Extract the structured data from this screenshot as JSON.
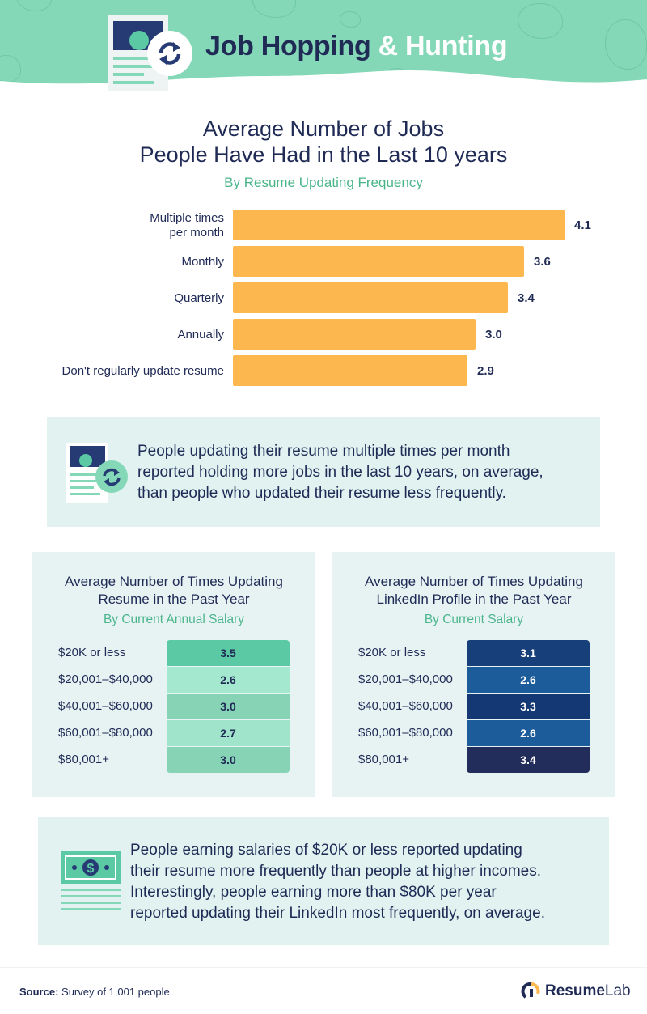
{
  "header": {
    "title_part1": "Job Hopping",
    "title_part2": "& Hunting"
  },
  "icons": {
    "header_doc": "resume-document-icon",
    "header_refresh": "refresh-icon",
    "callout1": "resume-refresh-icon",
    "callout2": "money-bill-icon",
    "brand": "resumelab-logo-icon"
  },
  "colors": {
    "header_bg": "#84d7b7",
    "bar": "#fdb74f",
    "navy": "#1f2a55",
    "green_text": "#4ab58b",
    "panel_bg": "#e7f3f3",
    "callout_bg": "#e1f2f1"
  },
  "chart_data": [
    {
      "type": "bar",
      "orientation": "horizontal",
      "title": "Average Number of Jobs People Have Had in the Last 10 years",
      "title_line1": "Average Number of Jobs",
      "title_line2": "People Have Had in the Last 10 years",
      "subtitle": "By Resume Updating Frequency",
      "categories": [
        [
          "Multiple times",
          "per month"
        ],
        [
          "Monthly"
        ],
        [
          "Quarterly"
        ],
        [
          "Annually"
        ],
        [
          "Don't regularly update resume"
        ]
      ],
      "values": [
        4.1,
        3.6,
        3.4,
        3.0,
        2.9
      ],
      "value_labels": [
        "4.1",
        "3.6",
        "3.4",
        "3.0",
        "2.9"
      ],
      "xlim": [
        0,
        4.1
      ],
      "bar_color": "#fdb74f"
    },
    {
      "type": "table",
      "title_line1": "Average Number of Times Updating",
      "title_line2": "Resume in the Past Year",
      "subtitle": "By Current Annual Salary",
      "rows": [
        {
          "label": "$20K or less",
          "value": "3.5",
          "color": "#5bc9a3",
          "text_color": "#1f2a55"
        },
        {
          "label": "$20,001–$40,000",
          "value": "2.6",
          "color": "#a3e8cf",
          "text_color": "#1f2a55"
        },
        {
          "label": "$40,001–$60,000",
          "value": "3.0",
          "color": "#86d3b6",
          "text_color": "#1f2a55"
        },
        {
          "label": "$60,001–$80,000",
          "value": "2.7",
          "color": "#9fe4cb",
          "text_color": "#1f2a55"
        },
        {
          "label": "$80,001+",
          "value": "3.0",
          "color": "#86d3b6",
          "text_color": "#1f2a55"
        }
      ]
    },
    {
      "type": "table",
      "title_line1": "Average Number of Times Updating",
      "title_line2": "LinkedIn Profile in the Past Year",
      "subtitle": "By Current Salary",
      "rows": [
        {
          "label": "$20K or less",
          "value": "3.1",
          "color": "#173f7a",
          "text_color": "#ffffff"
        },
        {
          "label": "$20,001–$40,000",
          "value": "2.6",
          "color": "#1c5c9a",
          "text_color": "#ffffff"
        },
        {
          "label": "$40,001–$60,000",
          "value": "3.3",
          "color": "#133873",
          "text_color": "#ffffff"
        },
        {
          "label": "$60,001–$80,000",
          "value": "2.6",
          "color": "#1c5c9a",
          "text_color": "#ffffff"
        },
        {
          "label": "$80,001+",
          "value": "3.4",
          "color": "#232d5c",
          "text_color": "#ffffff"
        }
      ]
    }
  ],
  "callouts": [
    {
      "lines": [
        "People updating their resume multiple times per month",
        "reported holding more jobs in the last 10 years, on average,",
        "than people who updated their resume less frequently."
      ]
    },
    {
      "lines": [
        "People earning salaries of $20K or less reported updating",
        "their resume more frequently than people at higher incomes.",
        "Interestingly, people earning more than $80K per year",
        "reported updating their LinkedIn most frequently, on average."
      ]
    }
  ],
  "footer": {
    "source_label": "Source:",
    "source_text": " Survey of 1,001 people",
    "brand_part1": "Resume",
    "brand_part2": "Lab"
  }
}
